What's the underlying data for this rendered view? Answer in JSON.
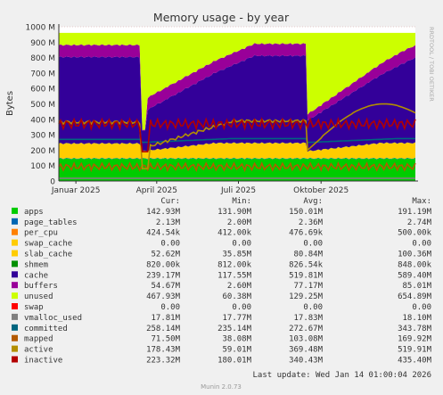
{
  "chart_data": {
    "type": "area",
    "title": "Memory usage - by year",
    "ylabel": "Bytes",
    "watermark": "RRDTOOL / TOBI OETIKER",
    "y_ticks": [
      "0",
      "100 M",
      "200 M",
      "300 M",
      "400 M",
      "500 M",
      "600 M",
      "700 M",
      "800 M",
      "900 M",
      "1000 M"
    ],
    "y_tick_values": [
      0,
      100,
      200,
      300,
      400,
      500,
      600,
      700,
      800,
      900,
      1000
    ],
    "ylim": [
      0,
      1000
    ],
    "x_ticks": [
      "Januar 2025",
      "April 2025",
      "Juli 2025",
      "Oktober 2025"
    ],
    "x_tick_values": [
      "2025-01-01",
      "2025-04-01",
      "2025-07-01",
      "2025-10-01"
    ],
    "x_range": [
      "2024-12-13",
      "2026-01-14"
    ],
    "grid": true,
    "legend_headers": [
      "Cur:",
      "Min:",
      "Avg:",
      "Max:"
    ],
    "series": [
      {
        "name": "apps",
        "color": "#00cc00",
        "cur": "142.93M",
        "min": "131.90M",
        "avg": "150.01M",
        "max": "191.19M"
      },
      {
        "name": "page_tables",
        "color": "#0066b3",
        "cur": "2.13M",
        "min": "2.00M",
        "avg": "2.36M",
        "max": "2.74M"
      },
      {
        "name": "per_cpu",
        "color": "#ff8000",
        "cur": "424.54k",
        "min": "412.00k",
        "avg": "476.69k",
        "max": "500.00k"
      },
      {
        "name": "swap_cache",
        "color": "#ffcc00",
        "cur": "0.00",
        "min": "0.00",
        "avg": "0.00",
        "max": "0.00"
      },
      {
        "name": "slab_cache",
        "color": "#ffcc00",
        "cur": "52.62M",
        "min": "35.85M",
        "avg": "80.84M",
        "max": "100.36M"
      },
      {
        "name": "shmem",
        "color": "#008f00",
        "cur": "820.00k",
        "min": "812.00k",
        "avg": "826.54k",
        "max": "848.00k"
      },
      {
        "name": "cache",
        "color": "#330099",
        "cur": "239.17M",
        "min": "117.55M",
        "avg": "519.81M",
        "max": "589.40M"
      },
      {
        "name": "buffers",
        "color": "#990099",
        "cur": "54.67M",
        "min": "2.60M",
        "avg": "77.17M",
        "max": "85.01M"
      },
      {
        "name": "unused",
        "color": "#ccff00",
        "cur": "467.93M",
        "min": "60.38M",
        "avg": "129.25M",
        "max": "654.89M"
      },
      {
        "name": "swap",
        "color": "#ff0000",
        "cur": "0.00",
        "min": "0.00",
        "avg": "0.00",
        "max": "0.00"
      },
      {
        "name": "vmalloc_used",
        "color": "#808080",
        "cur": "17.81M",
        "min": "17.77M",
        "avg": "17.83M",
        "max": "18.10M"
      },
      {
        "name": "committed",
        "color": "#006680",
        "cur": "258.14M",
        "min": "235.14M",
        "avg": "272.67M",
        "max": "343.78M"
      },
      {
        "name": "mapped",
        "color": "#b35a00",
        "cur": "71.50M",
        "min": "38.08M",
        "avg": "103.08M",
        "max": "169.92M"
      },
      {
        "name": "active",
        "color": "#b38f00",
        "cur": "178.43M",
        "min": "59.01M",
        "avg": "369.48M",
        "max": "519.91M"
      },
      {
        "name": "inactive",
        "color": "#b30000",
        "cur": "223.32M",
        "min": "180.01M",
        "avg": "340.43M",
        "max": "435.40M"
      }
    ],
    "last_update": "Last update: Wed Jan 14 01:00:04 2026",
    "footer": "Munin 2.0.73"
  }
}
